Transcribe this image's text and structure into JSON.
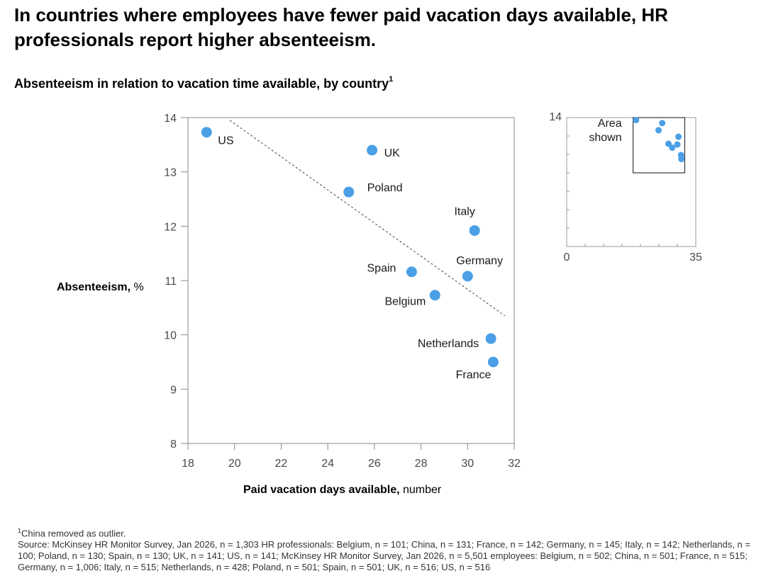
{
  "headline": "In countries where employees have fewer paid vacation days available, HR professionals report higher absenteeism.",
  "subtitle": "Absenteeism in relation to vacation time available, by country",
  "subtitle_footnote_marker": "1",
  "ylabel_bold": "Absenteeism,",
  "ylabel_unit": " %",
  "xlabel_bold": "Paid vacation days available,",
  "xlabel_unit": " number",
  "colors": {
    "point": "#4a9fe6",
    "axis": "#555555",
    "trend": "#444444"
  },
  "chart_data": [
    {
      "type": "scatter",
      "xlim": [
        18,
        32
      ],
      "ylim": [
        8,
        14
      ],
      "xticks": [
        "18",
        "20",
        "22",
        "24",
        "26",
        "28",
        "30",
        "32"
      ],
      "yticks": [
        "8",
        "9",
        "10",
        "11",
        "12",
        "13",
        "14"
      ],
      "points": [
        {
          "label": "US",
          "x": 18.8,
          "y": 13.73
        },
        {
          "label": "UK",
          "x": 25.9,
          "y": 13.4
        },
        {
          "label": "Poland",
          "x": 24.9,
          "y": 12.63
        },
        {
          "label": "Italy",
          "x": 30.3,
          "y": 11.92
        },
        {
          "label": "Spain",
          "x": 27.6,
          "y": 11.16
        },
        {
          "label": "Germany",
          "x": 30.0,
          "y": 11.08
        },
        {
          "label": "Belgium",
          "x": 28.6,
          "y": 10.73
        },
        {
          "label": "Netherlands",
          "x": 31.0,
          "y": 9.93
        },
        {
          "label": "France",
          "x": 31.1,
          "y": 9.5
        }
      ],
      "trendline": {
        "x": [
          19.8,
          31.6
        ],
        "y": [
          13.95,
          10.35
        ]
      }
    },
    {
      "type": "scatter",
      "xlim": [
        0,
        35
      ],
      "ylim": [
        0,
        14
      ],
      "xticks": [
        "0",
        "35"
      ],
      "yticks": [
        "14"
      ],
      "area_shown_label": [
        "Area",
        "shown"
      ],
      "area_shown": {
        "x": [
          18,
          32
        ],
        "y": [
          8,
          14
        ]
      },
      "points": [
        {
          "x": 18.8,
          "y": 13.73
        },
        {
          "x": 25.9,
          "y": 13.4
        },
        {
          "x": 24.9,
          "y": 12.63
        },
        {
          "x": 30.3,
          "y": 11.92
        },
        {
          "x": 27.6,
          "y": 11.16
        },
        {
          "x": 30.0,
          "y": 11.08
        },
        {
          "x": 28.6,
          "y": 10.73
        },
        {
          "x": 31.0,
          "y": 9.93
        },
        {
          "x": 31.1,
          "y": 9.5
        }
      ]
    }
  ],
  "footnote_marker": "1",
  "footnote": "China removed as outlier.",
  "source": "Source: McKinsey HR Monitor Survey, Jan 2026, n = 1,303 HR professionals: Belgium, n = 101; China, n = 131; France, n = 142; Germany, n = 145; Italy, n = 142; Netherlands, n = 100; Poland, n = 130; Spain, n = 130; UK, n = 141; US, n = 141; McKinsey HR Monitor Survey, Jan 2026, n = 5,501 employees: Belgium, n = 502; China, n = 501; France, n = 515; Germany, n = 1,006; Italy, n = 515; Netherlands, n = 428; Poland, n = 501; Spain, n = 501; UK, n = 516; US, n = 516"
}
